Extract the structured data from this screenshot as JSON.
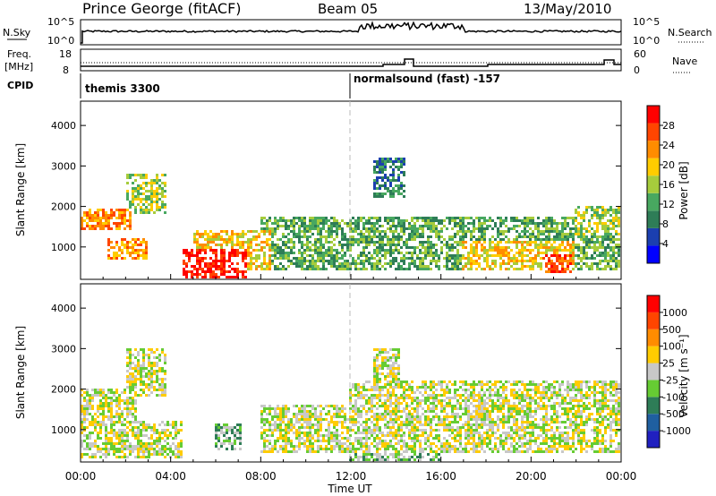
{
  "header": {
    "station": "Prince George (fitACF)",
    "beam": "Beam 05",
    "date": "13/May/2010"
  },
  "params": {
    "nsky_label": "N.Sky",
    "nsky_top": "10^5",
    "nsky_bottom": "10^0",
    "nsearch_label": "N.Search",
    "nsearch_top": "10^5",
    "nsearch_bottom": "10^0",
    "freq_label_1": "Freq.",
    "freq_label_2": "[MHz]",
    "freq_top": "18",
    "freq_bottom": "8",
    "nave_label": "Nave",
    "nave_top": "60",
    "nave_bottom": "0",
    "cpid_label": "CPID",
    "cpid_1": "themis 3300",
    "cpid_2": "normalsound (fast) -157"
  },
  "chart_data": [
    {
      "type": "heatmap",
      "name": "power",
      "ylabel": "Slant Range [km]",
      "xlabel": "Time UT",
      "y_ticks": [
        "4000",
        "3000",
        "2000",
        "1000"
      ],
      "y_range": [
        200,
        4600
      ],
      "x_range_hours": [
        0,
        24
      ],
      "x_ticks": [
        "00:00",
        "04:00",
        "08:00",
        "12:00",
        "16:00",
        "20:00",
        "00:00"
      ],
      "colorbar_label": "Power [dB]",
      "colorbar_ticks": [
        "28",
        "24",
        "20",
        "16",
        "12",
        "8",
        "4"
      ],
      "colors": [
        "#0000ff",
        "#1b3fb0",
        "#2e7d57",
        "#48a860",
        "#a6cc3c",
        "#ffcc00",
        "#ff8c00",
        "#ff4500",
        "#ff0000"
      ],
      "blobs": [
        {
          "t0": 0,
          "t1": 2.3,
          "r0": 1400,
          "r1": 1900,
          "level": 6
        },
        {
          "t0": 1.2,
          "t1": 3.0,
          "r0": 700,
          "r1": 1200,
          "level": 6
        },
        {
          "t0": 2.0,
          "t1": 3.8,
          "r0": 1800,
          "r1": 2800,
          "level": 4
        },
        {
          "t0": 4.5,
          "t1": 7.4,
          "r0": 200,
          "r1": 900,
          "level": 8
        },
        {
          "t0": 5.0,
          "t1": 8.5,
          "r0": 400,
          "r1": 1400,
          "level": 5
        },
        {
          "t0": 8.0,
          "t1": 12.5,
          "r0": 400,
          "r1": 1700,
          "level": 3
        },
        {
          "t0": 12.0,
          "t1": 24.0,
          "r0": 400,
          "r1": 1700,
          "level": 3
        },
        {
          "t0": 17.0,
          "t1": 22.0,
          "r0": 400,
          "r1": 1100,
          "level": 5
        },
        {
          "t0": 20.5,
          "t1": 21.8,
          "r0": 350,
          "r1": 800,
          "level": 7
        },
        {
          "t0": 13.0,
          "t1": 14.5,
          "r0": 2200,
          "r1": 3200,
          "level": 2
        },
        {
          "t0": 22.0,
          "t1": 24.0,
          "r0": 1300,
          "r1": 2000,
          "level": 4
        }
      ]
    },
    {
      "type": "heatmap",
      "name": "velocity",
      "ylabel": "Slant Range [km]",
      "xlabel": "Time UT",
      "y_ticks": [
        "4000",
        "3000",
        "2000",
        "1000"
      ],
      "y_range": [
        200,
        4600
      ],
      "x_range_hours": [
        0,
        24
      ],
      "x_ticks": [
        "00:00",
        "04:00",
        "08:00",
        "12:00",
        "16:00",
        "20:00",
        "00:00"
      ],
      "colorbar_label": "Velocity [m s⁻¹]",
      "colorbar_ticks": [
        "1000",
        "500",
        "100",
        "25",
        "-25",
        "-100",
        "-500",
        "-1000"
      ],
      "colors": [
        "#2020c0",
        "#1f5fa0",
        "#2e7d57",
        "#66cc33",
        "#c8c8c8",
        "#ffcc00",
        "#ff8c00",
        "#ff4500",
        "#ff0000"
      ],
      "blobs": [
        {
          "t0": 0,
          "t1": 2.5,
          "r0": 1000,
          "r1": 2000,
          "level": 4
        },
        {
          "t0": 0,
          "t1": 4.5,
          "r0": 300,
          "r1": 1200,
          "level": 4
        },
        {
          "t0": 2.0,
          "t1": 3.8,
          "r0": 1800,
          "r1": 3000,
          "level": 4
        },
        {
          "t0": 6.0,
          "t1": 7.2,
          "r0": 500,
          "r1": 1100,
          "level": 3
        },
        {
          "t0": 8.0,
          "t1": 24.0,
          "r0": 400,
          "r1": 1600,
          "level": 4
        },
        {
          "t0": 12.0,
          "t1": 24.0,
          "r0": 1500,
          "r1": 2200,
          "level": 4
        },
        {
          "t0": 13.0,
          "t1": 14.2,
          "r0": 2000,
          "r1": 3000,
          "level": 4
        },
        {
          "t0": 12.0,
          "t1": 16.0,
          "r0": 200,
          "r1": 400,
          "level": 3
        }
      ]
    }
  ]
}
